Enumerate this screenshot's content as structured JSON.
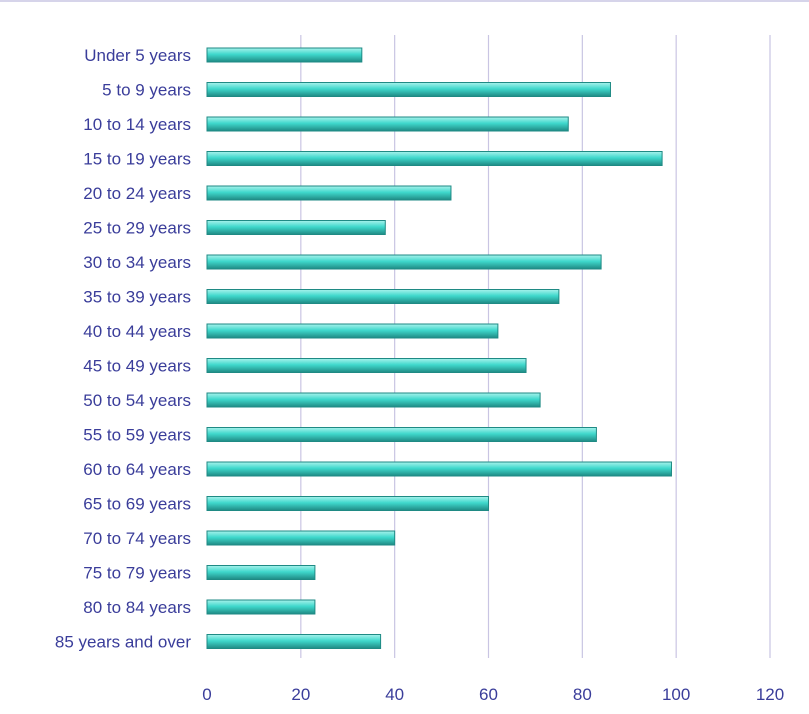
{
  "chart_data": {
    "type": "bar",
    "orientation": "horizontal",
    "title": "",
    "xlabel": "",
    "ylabel": "",
    "categories": [
      "Under 5 years",
      "5 to 9 years",
      "10 to 14 years",
      "15 to 19 years",
      "20 to 24 years",
      "25 to 29 years",
      "30 to 34 years",
      "35 to 39 years",
      "40 to 44 years",
      "45 to 49 years",
      "50 to 54 years",
      "55 to 59 years",
      "60 to 64 years",
      "65 to 69 years",
      "70 to 74 years",
      "75 to 79 years",
      "80 to 84 years",
      "85 years and over"
    ],
    "values": [
      33,
      86,
      77,
      97,
      52,
      38,
      84,
      75,
      62,
      68,
      71,
      83,
      99,
      60,
      40,
      23,
      23,
      37
    ],
    "xlim": [
      0,
      120
    ],
    "xticks": [
      "0",
      "20",
      "40",
      "60",
      "80",
      "100",
      "120"
    ],
    "grid": "vertical",
    "legend": "none",
    "colors": {
      "bar_fill": "#3fd8cc",
      "bar_shadow": "#1f8a84",
      "bar_highlight": "#a8f2ec",
      "gridline": "#c9c5e3",
      "label_text": "#3a3d9a",
      "top_border": "#c9c5e3"
    }
  }
}
